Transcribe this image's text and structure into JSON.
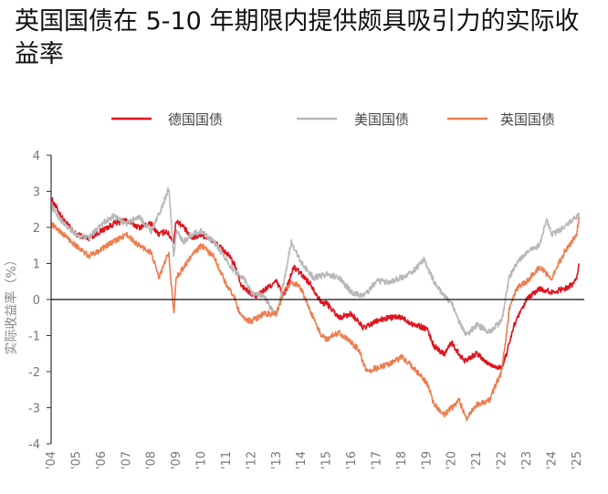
{
  "title": "英国国债在 5-10 年期限内提供颇具吸引力的实际收益率",
  "chart_data": {
    "type": "line",
    "ylabel": "实际收益率（%）",
    "ylim": [
      -4,
      4
    ],
    "yticks": [
      -4,
      -3,
      -2,
      -1,
      0,
      1,
      2,
      3,
      4
    ],
    "xlim": [
      2004,
      2025.3
    ],
    "xticks": [
      {
        "x": 2004,
        "label": "'04"
      },
      {
        "x": 2005,
        "label": "'05"
      },
      {
        "x": 2006,
        "label": "'06"
      },
      {
        "x": 2007,
        "label": "'07"
      },
      {
        "x": 2008,
        "label": "'08"
      },
      {
        "x": 2009,
        "label": "'09"
      },
      {
        "x": 2010,
        "label": "'10"
      },
      {
        "x": 2011,
        "label": "'11"
      },
      {
        "x": 2012,
        "label": "'12"
      },
      {
        "x": 2013,
        "label": "'13"
      },
      {
        "x": 2014,
        "label": "'14"
      },
      {
        "x": 2015,
        "label": "'15"
      },
      {
        "x": 2016,
        "label": "'16"
      },
      {
        "x": 2017,
        "label": "'17"
      },
      {
        "x": 2018,
        "label": "'18"
      },
      {
        "x": 2019,
        "label": "'19"
      },
      {
        "x": 2020,
        "label": "'20"
      },
      {
        "x": 2021,
        "label": "'21"
      },
      {
        "x": 2022,
        "label": "'22"
      },
      {
        "x": 2023,
        "label": "'23"
      },
      {
        "x": 2024,
        "label": "'24"
      },
      {
        "x": 2025,
        "label": "'25"
      }
    ],
    "legend_position": "top",
    "series": [
      {
        "name": "德国国债",
        "color": "#e0141e",
        "x": [
          2004.0,
          2004.5,
          2005.0,
          2005.5,
          2006.0,
          2006.5,
          2007.0,
          2007.5,
          2008.0,
          2008.3,
          2008.6,
          2008.9,
          2009.0,
          2009.3,
          2009.6,
          2010.0,
          2010.5,
          2011.0,
          2011.3,
          2011.6,
          2011.9,
          2012.2,
          2012.6,
          2013.0,
          2013.3,
          2013.7,
          2014.0,
          2014.4,
          2014.8,
          2015.0,
          2015.5,
          2016.0,
          2016.5,
          2017.0,
          2017.5,
          2018.0,
          2018.5,
          2019.0,
          2019.3,
          2019.7,
          2020.0,
          2020.5,
          2021.0,
          2021.5,
          2022.0,
          2022.2,
          2022.5,
          2022.8,
          2023.0,
          2023.5,
          2024.0,
          2024.5,
          2024.8,
          2025.0,
          2025.1
        ],
        "y": [
          2.8,
          2.2,
          1.8,
          1.7,
          1.9,
          2.1,
          2.2,
          2.0,
          2.1,
          1.8,
          1.9,
          1.6,
          2.2,
          2.0,
          1.7,
          1.8,
          1.6,
          1.3,
          1.0,
          0.4,
          0.2,
          0.1,
          0.3,
          0.5,
          0.1,
          0.9,
          0.7,
          0.4,
          -0.1,
          -0.1,
          -0.5,
          -0.4,
          -0.8,
          -0.6,
          -0.5,
          -0.5,
          -0.7,
          -0.8,
          -1.3,
          -1.5,
          -1.2,
          -1.7,
          -1.5,
          -1.8,
          -1.9,
          -1.5,
          -0.7,
          -0.3,
          0.0,
          0.3,
          0.2,
          0.3,
          0.4,
          0.6,
          1.0
        ]
      },
      {
        "name": "美国国债",
        "color": "#b8b8b8",
        "x": [
          2004.0,
          2004.5,
          2005.0,
          2005.5,
          2006.0,
          2006.5,
          2007.0,
          2007.5,
          2008.0,
          2008.4,
          2008.7,
          2008.9,
          2009.0,
          2009.3,
          2009.6,
          2010.0,
          2010.5,
          2011.0,
          2011.3,
          2011.7,
          2012.0,
          2012.5,
          2013.0,
          2013.3,
          2013.6,
          2014.0,
          2014.5,
          2015.0,
          2015.5,
          2016.0,
          2016.5,
          2017.0,
          2017.5,
          2018.0,
          2018.5,
          2018.9,
          2019.3,
          2019.7,
          2020.0,
          2020.3,
          2020.6,
          2021.0,
          2021.5,
          2022.0,
          2022.3,
          2022.6,
          2023.0,
          2023.5,
          2023.8,
          2024.0,
          2024.5,
          2025.0,
          2025.1
        ],
        "y": [
          2.6,
          2.1,
          1.8,
          1.7,
          2.1,
          2.3,
          2.1,
          2.3,
          1.9,
          2.5,
          3.1,
          1.2,
          1.9,
          1.6,
          1.8,
          1.9,
          1.6,
          1.1,
          0.8,
          0.6,
          0.2,
          0.1,
          -0.5,
          0.5,
          1.6,
          1.0,
          0.6,
          0.7,
          0.6,
          0.2,
          0.1,
          0.5,
          0.5,
          0.6,
          0.8,
          1.1,
          0.5,
          0.1,
          -0.1,
          -0.6,
          -1.0,
          -0.7,
          -0.9,
          -0.6,
          0.6,
          1.0,
          1.3,
          1.5,
          2.2,
          1.8,
          2.0,
          2.3,
          2.4
        ]
      },
      {
        "name": "英国国债",
        "color": "#ed7d4f",
        "x": [
          2004.0,
          2004.5,
          2005.0,
          2005.5,
          2006.0,
          2006.5,
          2007.0,
          2007.5,
          2008.0,
          2008.3,
          2008.7,
          2008.9,
          2009.0,
          2009.3,
          2009.6,
          2010.0,
          2010.5,
          2011.0,
          2011.3,
          2011.6,
          2012.0,
          2012.5,
          2013.0,
          2013.3,
          2013.6,
          2014.0,
          2014.4,
          2014.8,
          2015.0,
          2015.5,
          2016.0,
          2016.3,
          2016.6,
          2017.0,
          2017.5,
          2018.0,
          2018.5,
          2019.0,
          2019.3,
          2019.7,
          2020.0,
          2020.3,
          2020.6,
          2021.0,
          2021.5,
          2022.0,
          2022.3,
          2022.6,
          2023.0,
          2023.5,
          2024.0,
          2024.5,
          2025.0,
          2025.1
        ],
        "y": [
          2.1,
          1.8,
          1.5,
          1.2,
          1.4,
          1.6,
          1.8,
          1.5,
          1.3,
          0.6,
          1.3,
          -0.4,
          0.6,
          0.9,
          1.2,
          1.5,
          1.2,
          0.4,
          0.1,
          -0.5,
          -0.6,
          -0.4,
          -0.4,
          0.2,
          0.5,
          0.3,
          -0.4,
          -1.0,
          -1.1,
          -0.9,
          -1.2,
          -1.4,
          -2.0,
          -1.9,
          -1.8,
          -1.6,
          -1.9,
          -2.3,
          -2.9,
          -3.2,
          -3.0,
          -2.8,
          -3.3,
          -2.9,
          -2.8,
          -2.0,
          -0.3,
          0.3,
          0.5,
          0.9,
          0.6,
          1.3,
          1.8,
          2.3
        ]
      }
    ]
  }
}
